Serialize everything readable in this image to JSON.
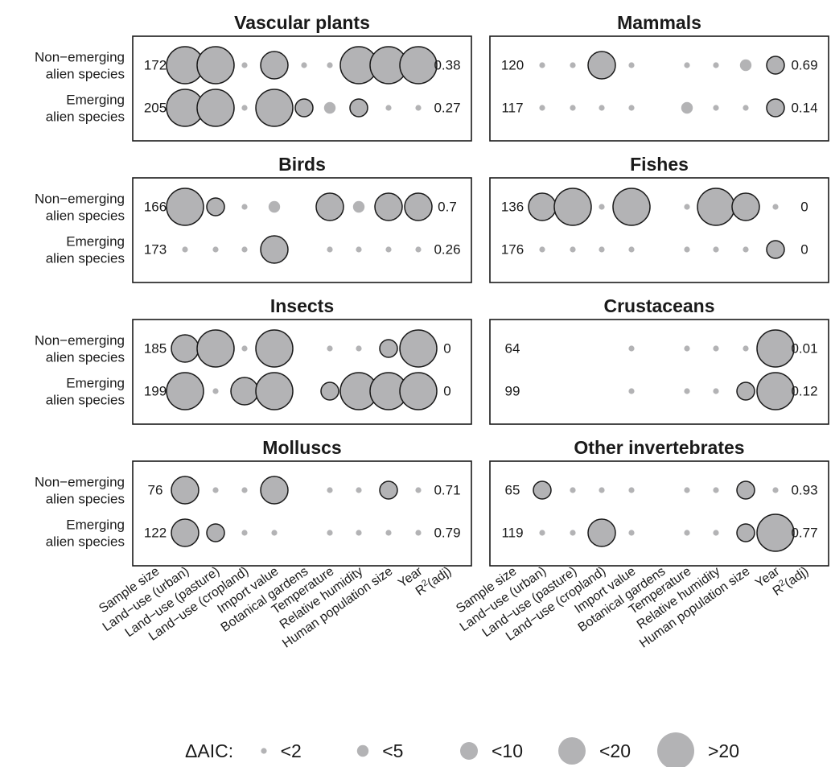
{
  "chart_data": {
    "type": "bubble-matrix",
    "row_labels": [
      [
        "Non−emerging",
        "alien species"
      ],
      [
        "Emerging",
        "alien species"
      ]
    ],
    "variables": [
      "Land−use (urban)",
      "Land−use (pasture)",
      "Land−use (cropland)",
      "Import value",
      "Botanical gardens",
      "Temperature",
      "Relative humidity",
      "Human population size",
      "Year"
    ],
    "x_labels": [
      "Sample size",
      "Land−use (urban)",
      "Land−use (pasture)",
      "Land−use (cropland)",
      "Import value",
      "Botanical gardens",
      "Temperature",
      "Relative humidity",
      "Human population size",
      "Year",
      "R²(adj)"
    ],
    "legend": {
      "title": "ΔAIC:",
      "levels": [
        "<2",
        "<5",
        "<10",
        "<20",
        ">20"
      ]
    },
    "size_scale": "level index: 0 = absent, 1 = <2, 2 = <5, 3 = <10, 4 = <20, 5 = >20",
    "panels": [
      {
        "title": "Vascular plants",
        "rows": [
          {
            "n": "172",
            "r2": "0.38",
            "levels": [
              5,
              5,
              1,
              4,
              1,
              1,
              5,
              5,
              5
            ]
          },
          {
            "n": "205",
            "r2": "0.27",
            "levels": [
              5,
              5,
              1,
              5,
              3,
              2,
              3,
              1,
              1
            ]
          }
        ]
      },
      {
        "title": "Mammals",
        "rows": [
          {
            "n": "120",
            "r2": "0.69",
            "levels": [
              1,
              1,
              4,
              1,
              0,
              1,
              1,
              2,
              3
            ]
          },
          {
            "n": "117",
            "r2": "0.14",
            "levels": [
              1,
              1,
              1,
              1,
              0,
              2,
              1,
              1,
              3
            ]
          }
        ]
      },
      {
        "title": "Birds",
        "rows": [
          {
            "n": "166",
            "r2": "0.7",
            "levels": [
              5,
              3,
              1,
              2,
              0,
              4,
              2,
              4,
              4
            ]
          },
          {
            "n": "173",
            "r2": "0.26",
            "levels": [
              1,
              1,
              1,
              4,
              0,
              1,
              1,
              1,
              1
            ]
          }
        ]
      },
      {
        "title": "Fishes",
        "rows": [
          {
            "n": "136",
            "r2": "0",
            "levels": [
              4,
              5,
              1,
              5,
              0,
              1,
              5,
              4,
              1
            ]
          },
          {
            "n": "176",
            "r2": "0",
            "levels": [
              1,
              1,
              1,
              1,
              0,
              1,
              1,
              1,
              3
            ]
          }
        ]
      },
      {
        "title": "Insects",
        "rows": [
          {
            "n": "185",
            "r2": "0",
            "levels": [
              4,
              5,
              1,
              5,
              0,
              1,
              1,
              3,
              5
            ]
          },
          {
            "n": "199",
            "r2": "0",
            "levels": [
              5,
              1,
              4,
              5,
              0,
              3,
              5,
              5,
              5
            ]
          }
        ]
      },
      {
        "title": "Crustaceans",
        "rows": [
          {
            "n": "64",
            "r2": "0.01",
            "levels": [
              0,
              0,
              0,
              1,
              0,
              1,
              1,
              1,
              5
            ]
          },
          {
            "n": "99",
            "r2": "0.12",
            "levels": [
              0,
              0,
              0,
              1,
              0,
              1,
              1,
              3,
              5
            ]
          }
        ]
      },
      {
        "title": "Molluscs",
        "rows": [
          {
            "n": "76",
            "r2": "0.71",
            "levels": [
              4,
              1,
              1,
              4,
              0,
              1,
              1,
              3,
              1
            ]
          },
          {
            "n": "122",
            "r2": "0.79",
            "levels": [
              4,
              3,
              1,
              1,
              0,
              1,
              1,
              1,
              1
            ]
          }
        ]
      },
      {
        "title": "Other invertebrates",
        "rows": [
          {
            "n": "65",
            "r2": "0.93",
            "levels": [
              3,
              1,
              1,
              1,
              0,
              1,
              1,
              3,
              1
            ]
          },
          {
            "n": "119",
            "r2": "0.77",
            "levels": [
              1,
              1,
              4,
              1,
              0,
              1,
              1,
              3,
              5
            ]
          }
        ]
      }
    ]
  },
  "colors": {
    "bubble_fill": "#b3b3b5",
    "bubble_stroke": "#1a1a1a",
    "text": "#1a1a1a"
  }
}
